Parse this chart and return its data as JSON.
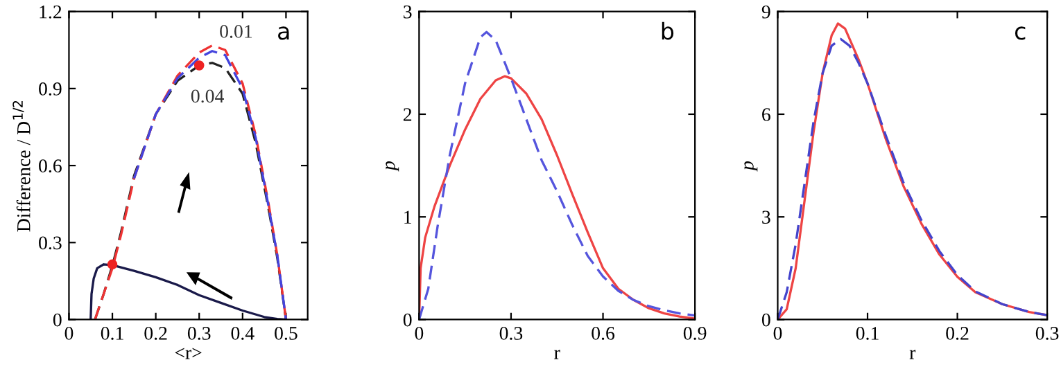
{
  "chart_data": [
    {
      "type": "line",
      "xlabel": "<r>",
      "ylabel": "Difference / D$^{1/2}$",
      "xlim": [
        0,
        0.55
      ],
      "ylim": [
        0,
        1.2
      ],
      "xticks": [
        0,
        0.1,
        0.2,
        0.3,
        0.4,
        0.5
      ],
      "yticks": [
        0,
        0.3,
        0.6,
        0.9,
        1.2
      ],
      "grid": false,
      "legend": false,
      "annotations": [
        "a",
        "0.01",
        "0.04"
      ],
      "series": [
        {
          "color": "#222222",
          "line_style": "dashed",
          "x": [
            0.06,
            0.08,
            0.1,
            0.12,
            0.15,
            0.2,
            0.25,
            0.3,
            0.33,
            0.36,
            0.4,
            0.43,
            0.46,
            0.48,
            0.5
          ],
          "values": [
            0,
            0.1,
            0.21,
            0.34,
            0.56,
            0.8,
            0.93,
            0.99,
            1.0,
            0.98,
            0.88,
            0.69,
            0.43,
            0.24,
            0
          ]
        },
        {
          "color": "#ee3333",
          "line_style": "dashed",
          "x": [
            0.06,
            0.08,
            0.1,
            0.12,
            0.15,
            0.2,
            0.25,
            0.3,
            0.33,
            0.36,
            0.4,
            0.43,
            0.46,
            0.48,
            0.5
          ],
          "values": [
            0,
            0.1,
            0.2,
            0.33,
            0.55,
            0.8,
            0.95,
            1.04,
            1.068,
            1.05,
            0.92,
            0.72,
            0.45,
            0.25,
            0
          ]
        },
        {
          "color": "#4444dd",
          "line_style": "dashed",
          "x": [
            0.15,
            0.2,
            0.25,
            0.3,
            0.33,
            0.36,
            0.4,
            0.43,
            0.46,
            0.48,
            0.5
          ],
          "values": [
            0.55,
            0.8,
            0.94,
            1.02,
            1.046,
            1.03,
            0.9,
            0.71,
            0.44,
            0.25,
            0
          ]
        },
        {
          "color": "#1a1a4a",
          "line_style": "solid",
          "x": [
            0.05,
            0.052,
            0.057,
            0.065,
            0.08,
            0.1,
            0.15,
            0.2,
            0.25,
            0.3,
            0.35,
            0.4,
            0.45,
            0.48,
            0.5
          ],
          "values": [
            0,
            0.1,
            0.16,
            0.2,
            0.215,
            0.212,
            0.19,
            0.165,
            0.135,
            0.095,
            0.065,
            0.035,
            0.01,
            0.002,
            0
          ]
        },
        {
          "type": "scatter",
          "color": "#ee2222",
          "marker": "circle",
          "x": [
            0.1,
            0.3
          ],
          "values": [
            0.215,
            0.99
          ]
        }
      ]
    },
    {
      "type": "line",
      "xlabel": "r",
      "ylabel": "p",
      "xlim": [
        0,
        0.9
      ],
      "ylim": [
        0,
        3
      ],
      "xticks": [
        0,
        0.3,
        0.6,
        0.9
      ],
      "yticks": [
        0,
        1,
        2,
        3
      ],
      "grid": false,
      "legend": false,
      "annotations": [
        "b"
      ],
      "series": [
        {
          "color": "#ee4444",
          "line_style": "solid",
          "x": [
            0,
            0.005,
            0.02,
            0.05,
            0.1,
            0.15,
            0.2,
            0.25,
            0.28,
            0.3,
            0.35,
            0.4,
            0.45,
            0.5,
            0.55,
            0.6,
            0.65,
            0.7,
            0.75,
            0.8,
            0.85,
            0.9
          ],
          "values": [
            0,
            0.5,
            0.8,
            1.1,
            1.5,
            1.85,
            2.15,
            2.33,
            2.37,
            2.35,
            2.2,
            1.95,
            1.6,
            1.22,
            0.85,
            0.5,
            0.3,
            0.19,
            0.11,
            0.06,
            0.03,
            0.01
          ]
        },
        {
          "color": "#5555dd",
          "line_style": "dashed",
          "x": [
            0,
            0.03,
            0.06,
            0.1,
            0.15,
            0.2,
            0.22,
            0.25,
            0.3,
            0.35,
            0.4,
            0.45,
            0.5,
            0.55,
            0.6,
            0.65,
            0.7,
            0.75,
            0.8,
            0.85,
            0.9
          ],
          "values": [
            0,
            0.3,
            0.9,
            1.6,
            2.3,
            2.75,
            2.8,
            2.72,
            2.35,
            1.95,
            1.55,
            1.25,
            0.92,
            0.62,
            0.42,
            0.28,
            0.19,
            0.13,
            0.09,
            0.06,
            0.04
          ]
        }
      ]
    },
    {
      "type": "line",
      "xlabel": "r",
      "ylabel": "p",
      "xlim": [
        0,
        0.3
      ],
      "ylim": [
        0,
        9
      ],
      "xticks": [
        0,
        0.1,
        0.2,
        0.3
      ],
      "yticks": [
        0,
        3,
        6,
        9
      ],
      "grid": false,
      "legend": false,
      "annotations": [
        "c"
      ],
      "series": [
        {
          "color": "#ee4444",
          "line_style": "solid",
          "x": [
            0,
            0.01,
            0.02,
            0.03,
            0.04,
            0.05,
            0.06,
            0.067,
            0.075,
            0.09,
            0.1,
            0.12,
            0.14,
            0.16,
            0.18,
            0.2,
            0.22,
            0.25,
            0.28,
            0.3
          ],
          "values": [
            0,
            0.3,
            1.5,
            3.5,
            5.5,
            7.2,
            8.3,
            8.65,
            8.5,
            7.6,
            6.9,
            5.3,
            3.9,
            2.8,
            1.9,
            1.25,
            0.8,
            0.45,
            0.22,
            0.13
          ]
        },
        {
          "color": "#4444cc",
          "line_style": "dashed",
          "x": [
            0,
            0.01,
            0.02,
            0.03,
            0.04,
            0.05,
            0.06,
            0.07,
            0.08,
            0.09,
            0.1,
            0.12,
            0.14,
            0.16,
            0.18,
            0.2,
            0.22,
            0.25,
            0.28,
            0.3
          ],
          "values": [
            0,
            0.8,
            2.2,
            4.0,
            5.8,
            7.2,
            8.0,
            8.2,
            8.0,
            7.5,
            6.9,
            5.4,
            4.0,
            2.9,
            2.0,
            1.3,
            0.82,
            0.45,
            0.22,
            0.13
          ]
        }
      ]
    }
  ]
}
